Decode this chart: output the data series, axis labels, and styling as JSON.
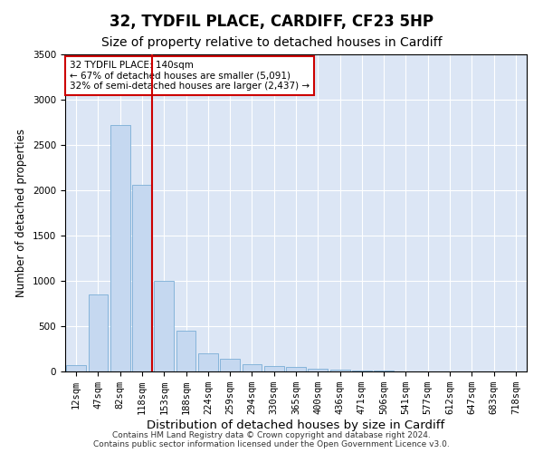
{
  "title": "32, TYDFIL PLACE, CARDIFF, CF23 5HP",
  "subtitle": "Size of property relative to detached houses in Cardiff",
  "xlabel": "Distribution of detached houses by size in Cardiff",
  "ylabel": "Number of detached properties",
  "categories": [
    "12sqm",
    "47sqm",
    "82sqm",
    "118sqm",
    "153sqm",
    "188sqm",
    "224sqm",
    "259sqm",
    "294sqm",
    "330sqm",
    "365sqm",
    "400sqm",
    "436sqm",
    "471sqm",
    "506sqm",
    "541sqm",
    "577sqm",
    "612sqm",
    "647sqm",
    "683sqm",
    "718sqm"
  ],
  "values": [
    75,
    850,
    2720,
    2060,
    1000,
    450,
    200,
    140,
    80,
    60,
    50,
    30,
    25,
    15,
    10,
    5,
    3,
    2,
    1,
    1,
    0
  ],
  "bar_color": "#c5d8f0",
  "bar_edge_color": "#7aaed6",
  "vline_color": "#cc0000",
  "annotation_text": "32 TYDFIL PLACE: 140sqm\n← 67% of detached houses are smaller (5,091)\n32% of semi-detached houses are larger (2,437) →",
  "annotation_box_color": "#ffffff",
  "annotation_box_edge": "#cc0000",
  "ylim": [
    0,
    3500
  ],
  "yticks": [
    0,
    500,
    1000,
    1500,
    2000,
    2500,
    3000,
    3500
  ],
  "plot_bg_color": "#dce6f5",
  "footer_text": "Contains HM Land Registry data © Crown copyright and database right 2024.\nContains public sector information licensed under the Open Government Licence v3.0.",
  "title_fontsize": 12,
  "subtitle_fontsize": 10,
  "xlabel_fontsize": 9.5,
  "ylabel_fontsize": 8.5,
  "tick_fontsize": 7.5,
  "footer_fontsize": 6.5
}
